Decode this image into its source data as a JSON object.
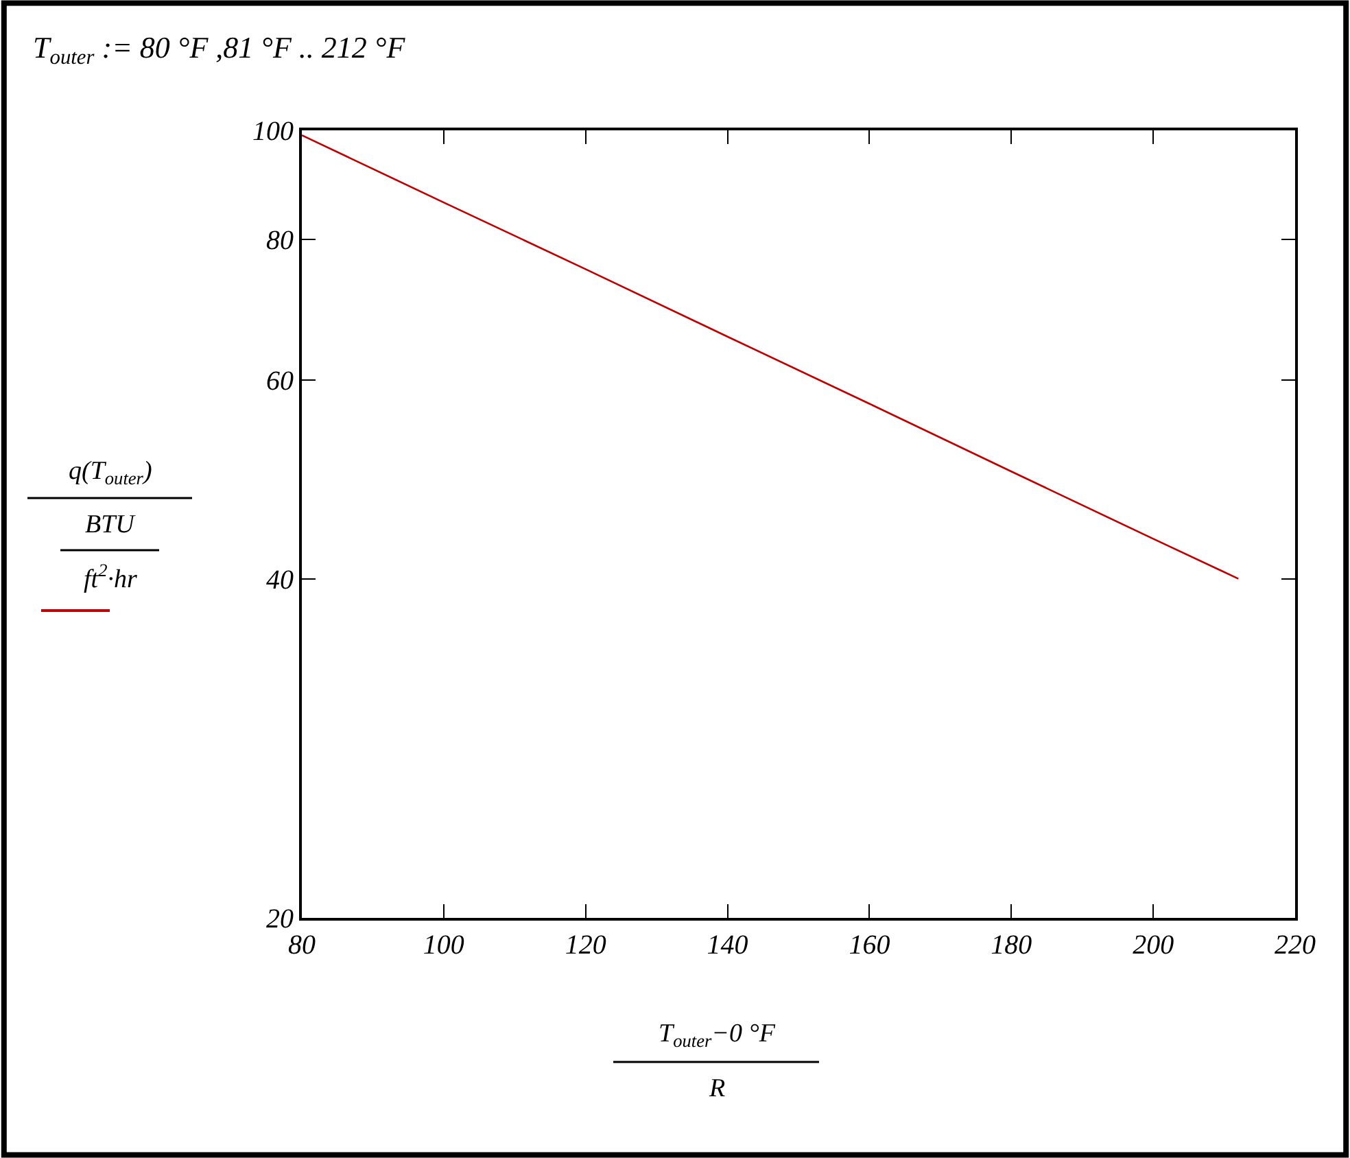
{
  "chart_data": {
    "type": "line",
    "title": "T$_{outer}$ := 80 °F ,81 °F .. 212 °F",
    "xlabel": "T$_{outer}$−0 °F\nR",
    "ylabel": "q(T$_{outer}$)\nBTU\nft$^{2}$·hr",
    "x": [
      80,
      100,
      120,
      140,
      160,
      180,
      200,
      212
    ],
    "series": [
      {
        "color": "#c00000",
        "values": [
          99,
          86.3,
          75.3,
          65.6,
          57.2,
          49.8,
          43.4,
          40
        ]
      }
    ],
    "log": "y",
    "xlim": [
      80,
      220
    ],
    "xticks": [
      80,
      100,
      120,
      140,
      160,
      180,
      200,
      220
    ],
    "ylim": [
      20,
      100
    ],
    "yticks": [
      20,
      40,
      60,
      80,
      100
    ],
    "grid": false,
    "marker": "none",
    "line_style": "solid"
  }
}
